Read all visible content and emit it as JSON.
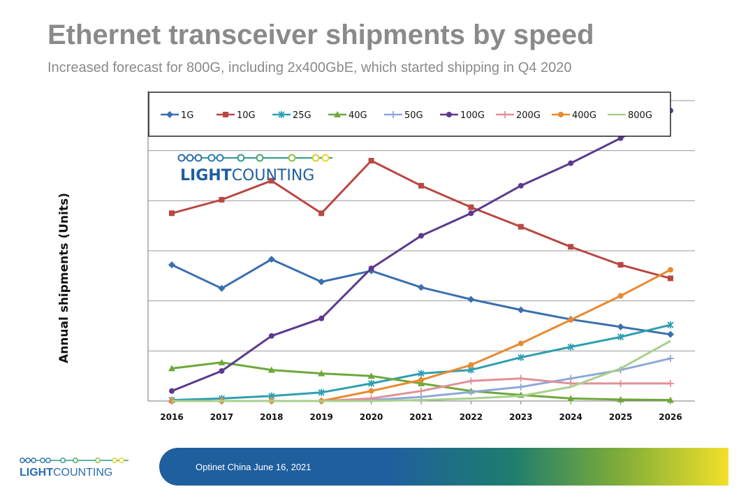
{
  "title": "Ethernet transceiver shipments by speed",
  "subtitle": "Increased forecast for 800G, including 2x400GbE, which started shipping in Q4 2020",
  "logo": {
    "bold": "LIGHT",
    "regular": "COUNTING"
  },
  "footer": {
    "text": "Optinet China June 16, 2021"
  },
  "chart_data": {
    "type": "line",
    "title": "Ethernet transceiver shipments by speed",
    "xlabel": "",
    "ylabel": "Annual shipments (Units)",
    "ylim": [
      0,
      6
    ],
    "grid": true,
    "legend_position": "top",
    "categories": [
      "2016",
      "2017",
      "2018",
      "2019",
      "2020",
      "2021",
      "2022",
      "2023",
      "2024",
      "2025",
      "2026"
    ],
    "series": [
      {
        "name": "1G",
        "color": "#3a6fae",
        "marker": "diamond",
        "values": [
          2.72,
          2.25,
          2.83,
          2.38,
          2.6,
          2.27,
          2.03,
          1.82,
          1.63,
          1.48,
          1.33
        ]
      },
      {
        "name": "10G",
        "color": "#b94743",
        "marker": "square",
        "values": [
          3.75,
          4.02,
          4.4,
          3.75,
          4.8,
          4.3,
          3.87,
          3.48,
          3.08,
          2.72,
          2.45
        ]
      },
      {
        "name": "25G",
        "color": "#2e9fb0",
        "marker": "asterisk",
        "values": [
          0.02,
          0.05,
          0.1,
          0.17,
          0.35,
          0.55,
          0.62,
          0.87,
          1.08,
          1.28,
          1.52
        ]
      },
      {
        "name": "40G",
        "color": "#6fa83a",
        "marker": "triangle",
        "values": [
          0.65,
          0.77,
          0.62,
          0.55,
          0.5,
          0.35,
          0.2,
          0.12,
          0.05,
          0.03,
          0.02
        ]
      },
      {
        "name": "50G",
        "color": "#8fa7d8",
        "marker": "plus",
        "values": [
          0.0,
          0.0,
          0.0,
          0.0,
          0.02,
          0.08,
          0.18,
          0.28,
          0.45,
          0.62,
          0.85
        ]
      },
      {
        "name": "100G",
        "color": "#5b3a8e",
        "marker": "circle",
        "values": [
          0.2,
          0.6,
          1.3,
          1.65,
          2.65,
          3.3,
          3.75,
          4.3,
          4.75,
          5.25,
          5.8
        ]
      },
      {
        "name": "200G",
        "color": "#e09098",
        "marker": "plus",
        "values": [
          0.0,
          0.0,
          0.0,
          0.0,
          0.05,
          0.2,
          0.4,
          0.45,
          0.35,
          0.35,
          0.35
        ]
      },
      {
        "name": "400G",
        "color": "#e88a30",
        "marker": "circle",
        "values": [
          0.0,
          0.0,
          0.0,
          0.0,
          0.2,
          0.42,
          0.72,
          1.15,
          1.62,
          2.1,
          2.62
        ]
      },
      {
        "name": "800G",
        "color": "#a8d08d",
        "marker": "none",
        "values": [
          0.0,
          0.0,
          0.0,
          0.0,
          0.0,
          0.02,
          0.05,
          0.1,
          0.28,
          0.65,
          1.2
        ]
      }
    ]
  }
}
